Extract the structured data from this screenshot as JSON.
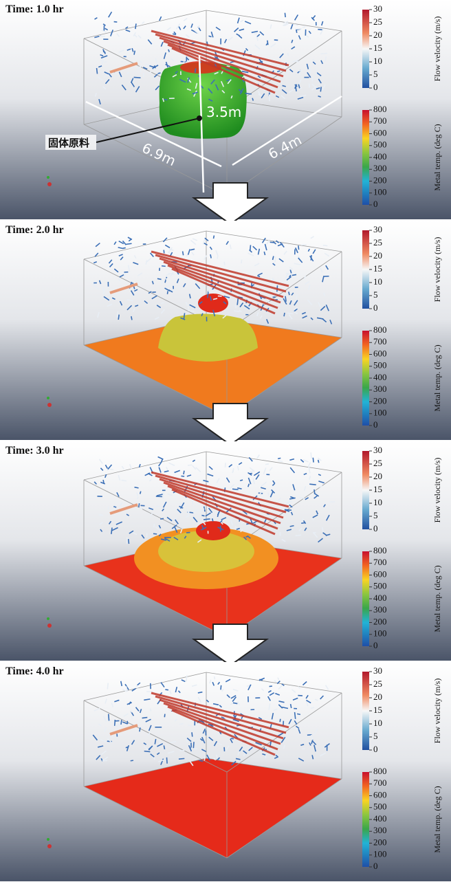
{
  "panels": [
    {
      "time": "Time:  1.0 hr"
    },
    {
      "time": "Time:  2.0 hr"
    },
    {
      "time": "Time:  3.0 hr"
    },
    {
      "time": "Time:  4.0 hr"
    }
  ],
  "colorbars": {
    "velocity": {
      "title": "Flow velocity (m/s)",
      "ticks": [
        30,
        25,
        20,
        15,
        10,
        5,
        0
      ]
    },
    "temperature": {
      "title": "Metal temp. (deg C)",
      "ticks": [
        800,
        700,
        600,
        500,
        400,
        300,
        200,
        100,
        0
      ]
    }
  },
  "annotations": {
    "height": "3.5m",
    "width": "6.9m",
    "depth": "6.4m",
    "material": "固体原料"
  }
}
